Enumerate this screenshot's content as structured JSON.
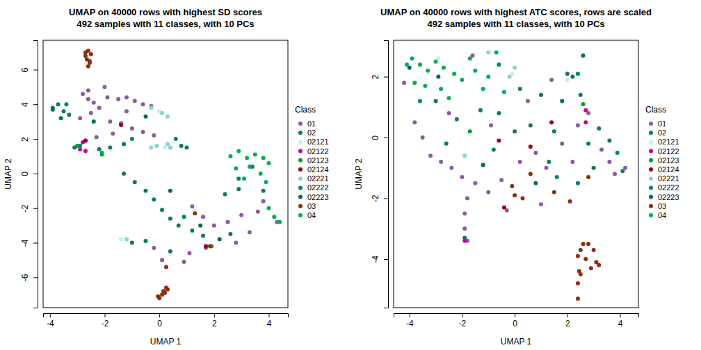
{
  "chart_data": [
    {
      "type": "scatter",
      "title": "UMAP on 40000 rows with highest SD scores",
      "subtitle": "492 samples with 11 classes, with 10 PCs",
      "x_label": "UMAP 1",
      "y_label": "UMAP 2",
      "legend_title": "Class",
      "legend": "right",
      "xlim": [
        -4.25,
        4.7
      ],
      "ylim": [
        -7.75,
        7.7
      ],
      "xticks": [
        -4,
        -2,
        0,
        2,
        4
      ],
      "yticks": [
        -6,
        -4,
        -2,
        0,
        2,
        4,
        6
      ],
      "series": [
        {
          "name": "01",
          "color": "#8c5ba0",
          "x": [
            -2.8,
            -2.6,
            -2.4,
            -2.2,
            -1.9,
            -1.5,
            -1.2,
            -0.9,
            -0.6,
            -0.3,
            -2.9,
            -2.5,
            -1.8,
            -1.4,
            -1.0,
            -0.6,
            -0.2,
            -2.3,
            -1.7,
            -2.6,
            -1.2,
            -2.0,
            1.2,
            1.6,
            2.0,
            2.5,
            3.0,
            3.3,
            2.8,
            1.7,
            1.1,
            0.9,
            0.1,
            -0.2,
            3.6,
            3.8,
            4.3
          ],
          "y": [
            4.6,
            4.3,
            4.1,
            3.8,
            4.4,
            4.3,
            4.4,
            4.2,
            4.0,
            3.9,
            3.2,
            3.5,
            3.0,
            2.9,
            2.6,
            2.4,
            2.2,
            2.1,
            2.3,
            4.8,
            3.6,
            5.0,
            -1.9,
            -2.5,
            -3.0,
            -2.8,
            -2.4,
            -3.4,
            -4.0,
            -4.3,
            -4.6,
            -5.1,
            -5.0,
            -4.3,
            -2.2,
            -1.6,
            -2.8
          ]
        },
        {
          "name": "02",
          "color": "#11795c",
          "x": [
            -3.9,
            -3.7,
            -3.5,
            -3.3,
            -3.1,
            -2.7,
            -2.2,
            -1.8,
            -1.3,
            0.8,
            1.0,
            -1.3,
            -0.9,
            -0.5,
            -0.2,
            0.1,
            0.4,
            0.7,
            1.2,
            1.6,
            -0.5,
            -1.0,
            0.4,
            1.9,
            2.6,
            2.9,
            3.4,
            2.4,
            3.8
          ],
          "y": [
            3.8,
            4.0,
            3.6,
            3.4,
            1.5,
            1.9,
            1.4,
            1.5,
            1.7,
            1.6,
            1.5,
            0.0,
            -0.5,
            -1.0,
            -1.5,
            -2.1,
            -2.6,
            -3.0,
            -3.3,
            -3.6,
            -3.9,
            -4.0,
            -4.5,
            -4.2,
            -3.5,
            -0.9,
            0.4,
            -1.2,
            -1.0
          ]
        },
        {
          "name": "02121",
          "color": "#c5f0f0",
          "x": [
            0.0,
            0.2,
            -1.4
          ],
          "y": [
            3.6,
            1.5,
            -3.8
          ]
        },
        {
          "name": "02122",
          "color": "#cc00a0",
          "x": [
            -2.9,
            -2.7,
            -2.8
          ],
          "y": [
            1.4,
            1.3,
            1.8
          ]
        },
        {
          "name": "02123",
          "color": "#009e30",
          "x": [
            -2.1,
            -3.0
          ],
          "y": [
            1.1,
            1.6
          ]
        },
        {
          "name": "02124",
          "color": "#a00020",
          "x": [
            -2.7,
            1.7,
            -1.4
          ],
          "y": [
            1.9,
            -4.2,
            2.8
          ]
        },
        {
          "name": "02221",
          "color": "#8ad2cc",
          "x": [
            -0.3,
            0.1,
            0.3,
            -0.3,
            -0.1,
            0.3,
            0.4,
            -1.2
          ],
          "y": [
            3.8,
            3.5,
            3.3,
            1.5,
            1.6,
            1.7,
            1.5,
            -3.8
          ]
        },
        {
          "name": "02222",
          "color": "#00876a",
          "x": [
            -3.4,
            -2.9,
            -1.0,
            0.6,
            0.9,
            2.9
          ],
          "y": [
            4.0,
            1.6,
            2.0,
            2.0,
            -2.5,
            -0.3
          ]
        },
        {
          "name": "02223",
          "color": "#006d55",
          "x": [
            -3.9,
            -3.6,
            -2.4,
            -0.5,
            0.4,
            1.5,
            2.2
          ],
          "y": [
            3.7,
            3.2,
            3.0,
            3.3,
            -1.0,
            -3.0,
            -3.8
          ]
        },
        {
          "name": "03",
          "color": "#8b2e12",
          "x": [
            -2.7,
            -2.6,
            -2.5,
            -2.65,
            -2.55,
            -2.6,
            -2.7,
            -2.55,
            0.0,
            0.1,
            0.2,
            0.3,
            -0.05,
            0.15,
            0.25,
            0.25,
            1.85,
            1.3
          ],
          "y": [
            7.0,
            7.1,
            6.9,
            6.6,
            6.4,
            6.2,
            6.8,
            6.5,
            -7.2,
            -7.0,
            -6.9,
            -6.7,
            -7.1,
            -6.8,
            -6.6,
            -5.4,
            -4.2,
            -2.3
          ]
        },
        {
          "name": "04",
          "color": "#00b050",
          "x": [
            2.6,
            2.9,
            3.2,
            3.5,
            3.8,
            4.0,
            3.3,
            3.7,
            3.9,
            3.1,
            4.0,
            4.2,
            4.4,
            2.8,
            -2.1
          ],
          "y": [
            1.0,
            1.3,
            0.9,
            1.1,
            0.9,
            0.6,
            0.4,
            0.0,
            -0.5,
            -0.3,
            -2.0,
            -2.5,
            -2.8,
            0.3,
            1.2
          ]
        }
      ]
    },
    {
      "type": "scatter",
      "title": "UMAP on 40000 rows with highest ATC scores, rows are scaled",
      "subtitle": "492 samples with 11 classes, with 10 PCs",
      "x_label": "UMAP 1",
      "y_label": "UMAP 2",
      "legend_title": "Class",
      "legend": "right",
      "xlim": [
        -4.6,
        4.7
      ],
      "ylim": [
        -5.6,
        3.2
      ],
      "xticks": [
        -4,
        -2,
        0,
        2,
        4
      ],
      "yticks": [
        -4,
        -2,
        0,
        2
      ],
      "series": [
        {
          "name": "01",
          "color": "#8c5ba0",
          "x": [
            -4.2,
            -3.8,
            -3.5,
            -3.2,
            -2.8,
            -2.4,
            -2.0,
            -1.8,
            -1.9,
            -1.9,
            -1.8,
            -1.5,
            -1.0,
            -0.5,
            0.2,
            0.8,
            1.2,
            1.8,
            2.4,
            2.8,
            3.3,
            3.8,
            4.2,
            -2.5,
            -1.6,
            -0.9,
            0.5,
            1.4,
            3.6,
            2.2,
            1.0,
            -0.3
          ],
          "y": [
            1.8,
            0.5,
            0.0,
            -0.6,
            -0.8,
            -1.0,
            -1.3,
            -2.0,
            -2.5,
            -3.0,
            -3.4,
            -1.5,
            -1.8,
            -1.4,
            -0.8,
            -0.5,
            -1.0,
            -0.2,
            0.4,
            0.8,
            -0.4,
            -1.2,
            -1.0,
            0.8,
            2.7,
            0.4,
            1.2,
            1.9,
            -0.8,
            -0.8,
            -2.2,
            -2.4
          ]
        },
        {
          "name": "02",
          "color": "#11795c",
          "x": [
            -3.0,
            -2.2,
            -1.3,
            -0.6,
            0.2,
            0.6,
            1.0,
            1.5,
            2.0,
            2.2,
            2.5,
            2.8,
            3.2,
            3.6,
            4.1,
            1.3,
            -0.8,
            -2.6,
            0.0,
            2.4,
            -1.9,
            3.0
          ],
          "y": [
            1.2,
            0.6,
            0.9,
            0.8,
            1.6,
            0.4,
            1.4,
            0.2,
            2.1,
            2.0,
            1.4,
            -0.2,
            0.3,
            -0.1,
            -1.1,
            -0.8,
            -0.4,
            -0.2,
            0.2,
            -1.5,
            -3.3,
            -1.0
          ]
        },
        {
          "name": "02121",
          "color": "#c5f0f0",
          "x": [
            -0.1,
            2.0,
            -2.9
          ],
          "y": [
            2.1,
            1.9,
            2.6
          ]
        },
        {
          "name": "02122",
          "color": "#cc00a0",
          "x": [
            2.7,
            2.7,
            -1.9
          ],
          "y": [
            0.9,
            0.5,
            -3.4
          ]
        },
        {
          "name": "02123",
          "color": "#009e30",
          "x": [
            2.6,
            -1.7
          ],
          "y": [
            1.1,
            0.2
          ]
        },
        {
          "name": "02124",
          "color": "#a00020",
          "x": [
            0.6,
            1.4,
            -0.6,
            -0.4
          ],
          "y": [
            -0.3,
            0.5,
            -0.1,
            -2.3
          ]
        },
        {
          "name": "02221",
          "color": "#8ad2cc",
          "x": [
            -1.0,
            0.0,
            -0.2,
            -1.9
          ],
          "y": [
            2.8,
            2.3,
            2.0,
            -0.6
          ]
        },
        {
          "name": "02222",
          "color": "#00876a",
          "x": [
            -3.6,
            -0.6,
            2.4,
            1.6,
            3.9
          ],
          "y": [
            1.2,
            2.4,
            2.1,
            -1.3,
            -0.5
          ]
        },
        {
          "name": "02223",
          "color": "#006d55",
          "x": [
            -4.0,
            -2.9,
            1.8,
            0.8,
            2.6,
            -1.2
          ],
          "y": [
            2.3,
            2.0,
            1.2,
            -1.5,
            2.7,
            -0.9
          ]
        },
        {
          "name": "03",
          "color": "#8b2e12",
          "x": [
            0.0,
            -0.1,
            0.6,
            2.1,
            1.5,
            2.8,
            0.3,
            2.6,
            2.8,
            2.5,
            3.0,
            2.4,
            2.7,
            3.1,
            2.9,
            2.45,
            3.2,
            2.4,
            2.4,
            2.5
          ],
          "y": [
            -1.9,
            -1.6,
            -1.2,
            -2.1,
            -1.8,
            -1.3,
            -2.0,
            -3.5,
            -3.5,
            -3.7,
            -3.7,
            -3.9,
            -4.0,
            -4.1,
            -4.3,
            -4.4,
            -4.2,
            -4.8,
            -5.3,
            -4.5
          ]
        },
        {
          "name": "04",
          "color": "#00b050",
          "x": [
            -4.1,
            -3.9,
            -3.6,
            -3.3,
            -3.0,
            -2.7,
            -2.3,
            -1.7,
            -1.5,
            -1.0,
            -0.7,
            -3.8,
            -3.4,
            -2.8,
            -2.5,
            -1.2,
            -2.0,
            -0.4
          ],
          "y": [
            2.4,
            2.6,
            2.4,
            2.2,
            2.5,
            2.3,
            2.1,
            2.6,
            2.2,
            2.0,
            2.8,
            1.8,
            1.7,
            1.6,
            1.3,
            1.6,
            1.9,
            1.5
          ]
        }
      ]
    }
  ]
}
